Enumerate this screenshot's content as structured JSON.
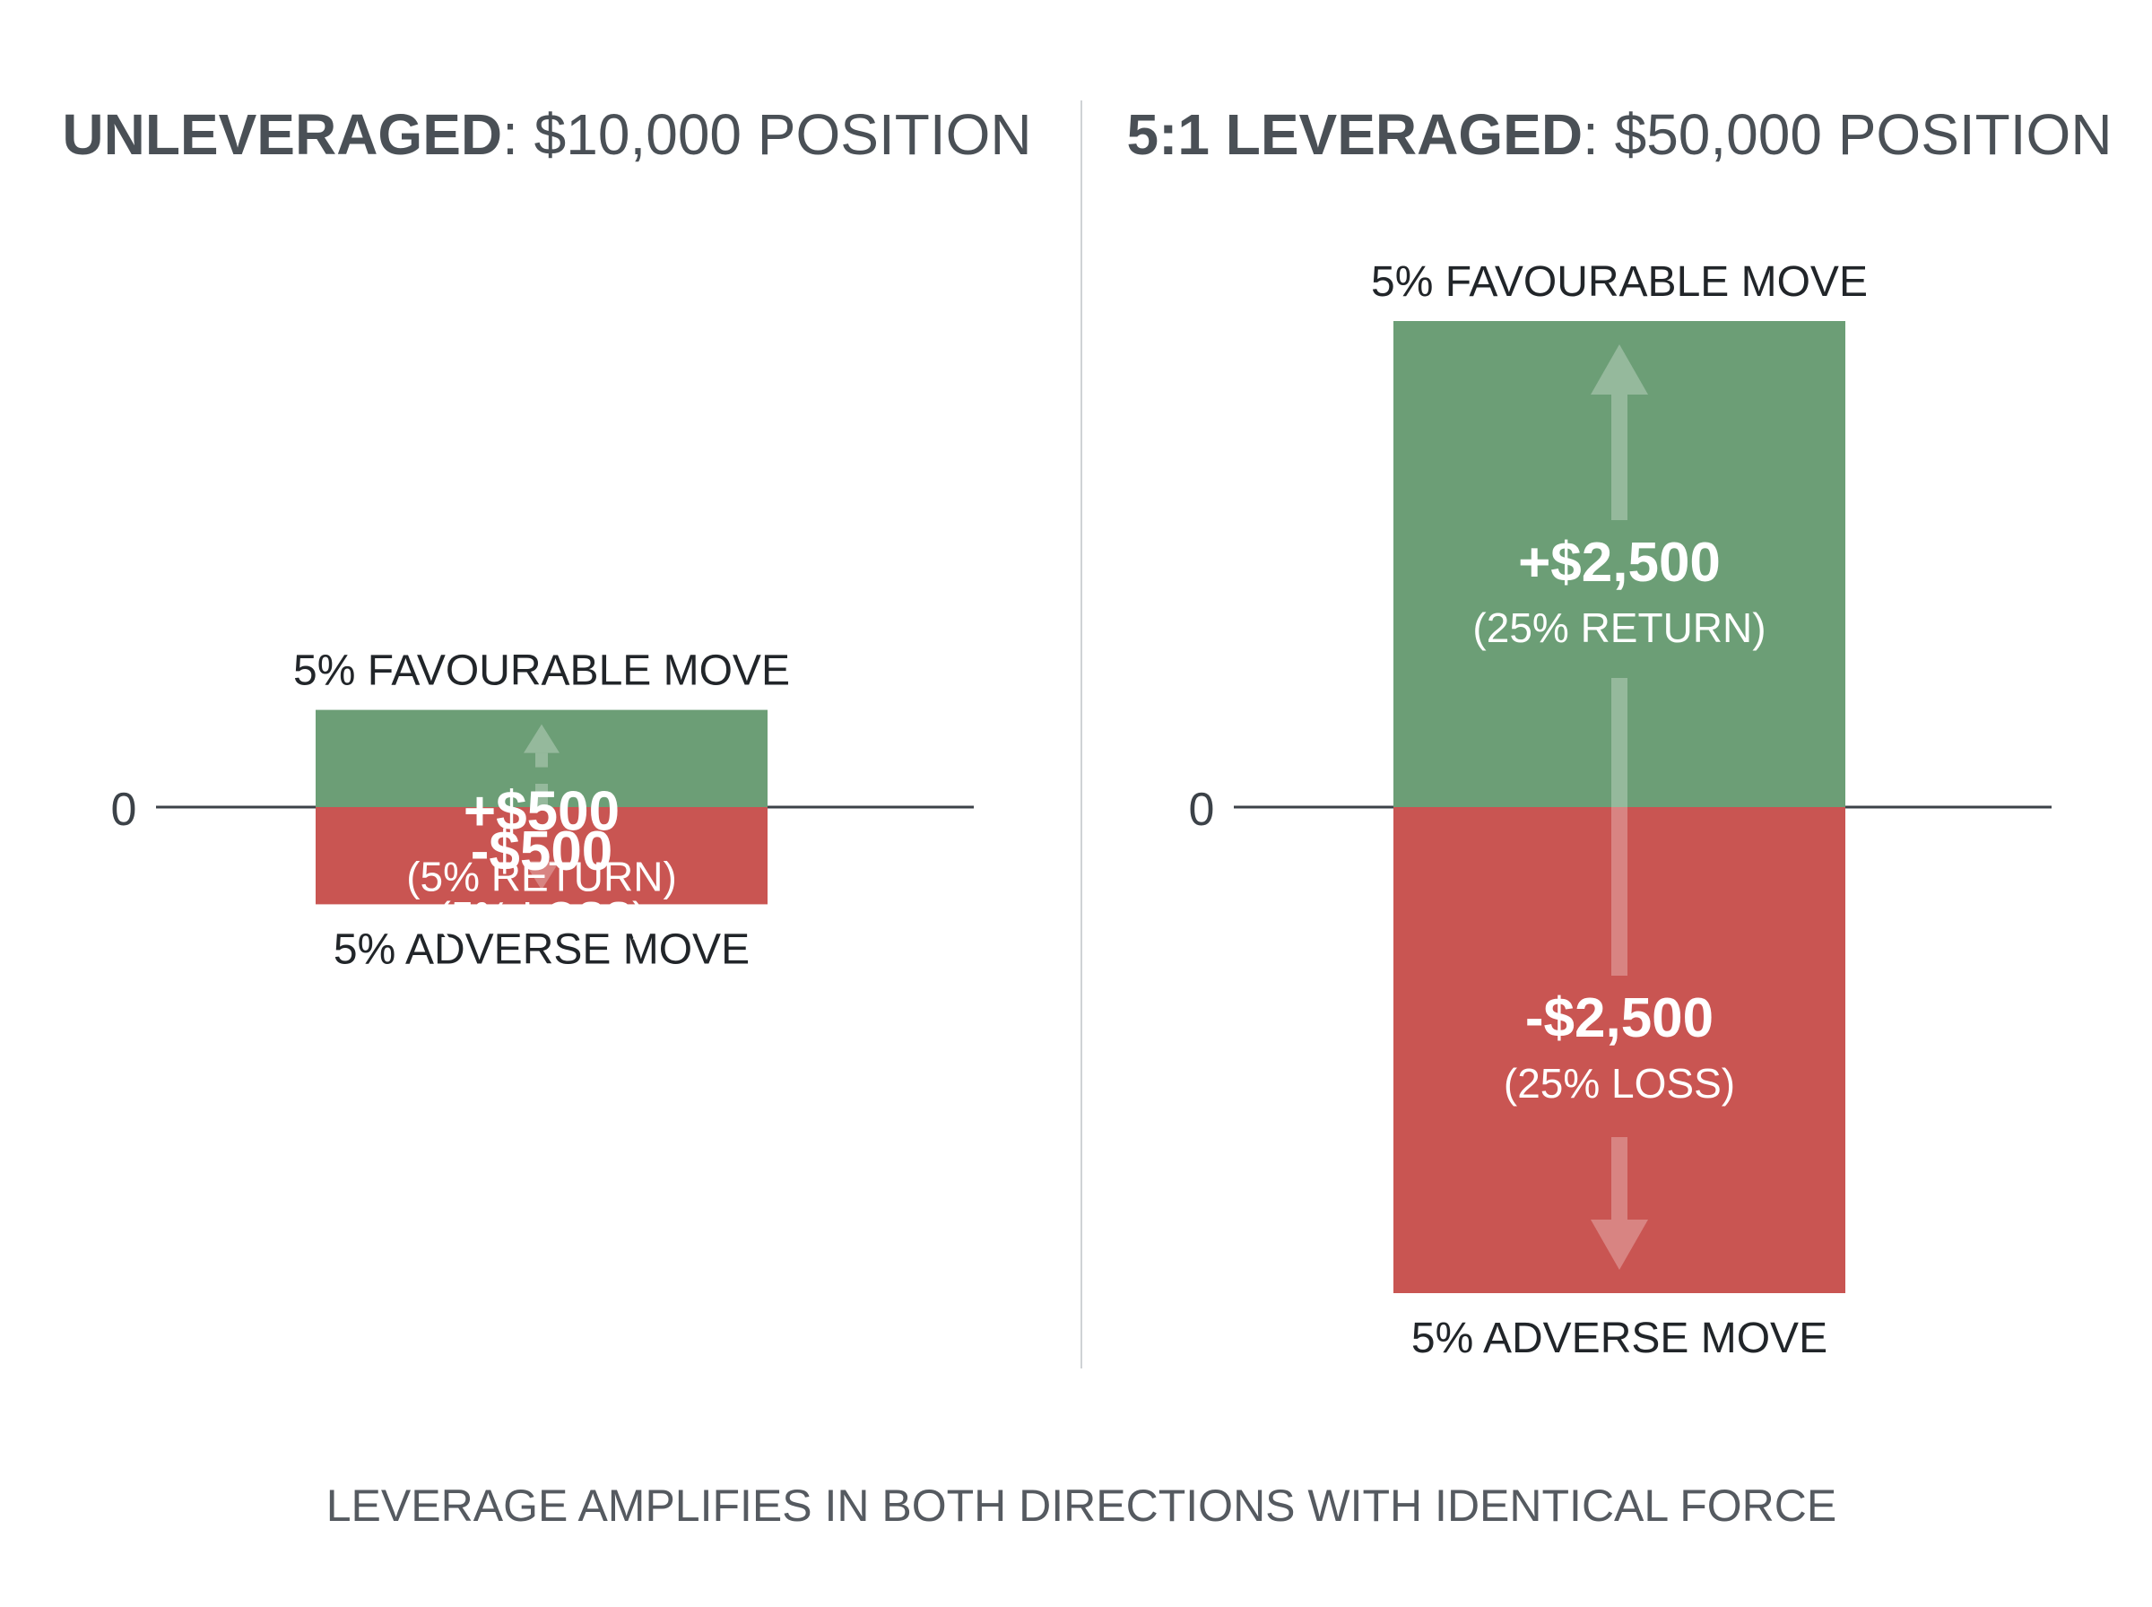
{
  "colors": {
    "gain": "#6c9e76",
    "loss": "#c95552",
    "text_dark": "#212529",
    "title": "#4a5056",
    "axis": "#3c4248",
    "divider": "#cfd2d5",
    "caption": "#555a60",
    "bar_text": "#ffffff"
  },
  "chart_data": [
    {
      "type": "bar",
      "title_bold": "UNLEVERAGED",
      "title_rest": ": $10,000 POSITION",
      "zero_label": "0",
      "top_label": "5% FAVOURABLE MOVE",
      "bottom_label": "5% ADVERSE MOVE",
      "ylim": [
        -2500,
        2500
      ],
      "series": [
        {
          "value": 500,
          "value_label": "+$500",
          "sub_label": "(5% RETURN)"
        },
        {
          "value": -500,
          "value_label": "-$500",
          "sub_label": "(5% LOSS)"
        }
      ]
    },
    {
      "type": "bar",
      "title_bold": "5:1 LEVERAGED",
      "title_rest": ": $50,000 POSITION",
      "zero_label": "0",
      "top_label": "5% FAVOURABLE MOVE",
      "bottom_label": "5% ADVERSE MOVE",
      "ylim": [
        -2500,
        2500
      ],
      "series": [
        {
          "value": 2500,
          "value_label": "+$2,500",
          "sub_label": "(25% RETURN)"
        },
        {
          "value": -2500,
          "value_label": "-$2,500",
          "sub_label": "(25% LOSS)"
        }
      ]
    }
  ],
  "caption": "LEVERAGE AMPLIFIES IN BOTH DIRECTIONS WITH IDENTICAL FORCE"
}
